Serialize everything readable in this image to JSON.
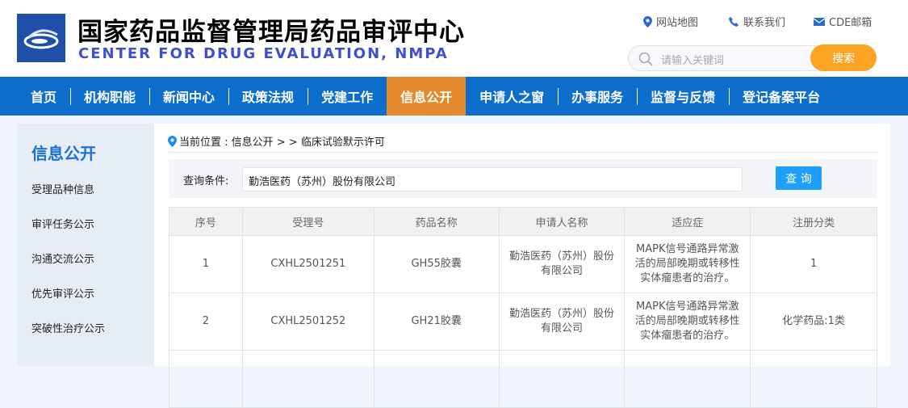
{
  "header": {
    "title_cn": "国家药品监督管理局药品审评中心",
    "title_en": "CENTER FOR DRUG EVALUATION, NMPA",
    "links": [
      {
        "label": "网站地图",
        "icon": "location-pin-icon"
      },
      {
        "label": "联系我们",
        "icon": "phone-icon"
      },
      {
        "label": "CDE邮箱",
        "icon": "mail-icon"
      }
    ],
    "search_placeholder": "请输入关键词",
    "search_button": "搜索"
  },
  "nav": {
    "items": [
      "首页",
      "机构职能",
      "新闻中心",
      "政策法规",
      "党建工作",
      "信息公开",
      "申请人之窗",
      "办事服务",
      "监督与反馈",
      "登记备案平台"
    ],
    "active": "信息公开"
  },
  "sidebar": {
    "title": "信息公开",
    "items": [
      "受理品种信息",
      "审评任务公示",
      "沟通交流公示",
      "优先审评公示",
      "突破性治疗公示"
    ]
  },
  "breadcrumb": {
    "label": "当前位置 : 信息公开 > > 临床试验默示许可"
  },
  "query": {
    "label": "查询条件:",
    "value": "勤浩医药（苏州）股份有限公司",
    "button": "查 询"
  },
  "table": {
    "headers": [
      "序号",
      "受理号",
      "药品名称",
      "申请人名称",
      "适应症",
      "注册分类"
    ],
    "rows": [
      [
        "1",
        "CXHL2501251",
        "GH55胶囊",
        "勤浩医药（苏州）股份有限公司",
        "MAPK信号通路异常激活的局部晚期或转移性实体瘤患者的治疗。",
        "1"
      ],
      [
        "2",
        "CXHL2501252",
        "GH21胶囊",
        "勤浩医药（苏州）股份有限公司",
        "MAPK信号通路异常激活的局部晚期或转移性实体瘤患者的治疗。",
        "化学药品:1类"
      ]
    ]
  },
  "colors": {
    "nav": "#0e6ecb",
    "active": "#e58a2c",
    "search_button": "#fba423",
    "query_button": "#1e9ffd"
  }
}
